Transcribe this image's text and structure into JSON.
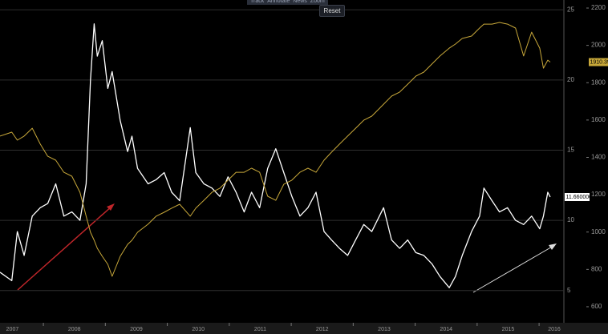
{
  "toolbar": {
    "items": [
      "Track",
      "Annotate",
      "News",
      "Zoom"
    ],
    "reset": "Reset"
  },
  "chart_data": {
    "type": "line",
    "x": [
      2007.3,
      2007.49,
      2007.58,
      2007.69,
      2007.82,
      2007.95,
      2008.07,
      2008.2,
      2008.33,
      2008.46,
      2008.59,
      2008.69,
      2008.76,
      2008.82,
      2008.87,
      2008.95,
      2009.04,
      2009.11,
      2009.24,
      2009.36,
      2009.43,
      2009.52,
      2009.69,
      2009.82,
      2009.95,
      2010.07,
      2010.2,
      2010.37,
      2010.46,
      2010.59,
      2010.72,
      2010.85,
      2010.98,
      2011.11,
      2011.24,
      2011.36,
      2011.49,
      2011.62,
      2011.75,
      2011.88,
      2012.01,
      2012.14,
      2012.27,
      2012.4,
      2012.53,
      2012.65,
      2012.78,
      2012.91,
      2013.04,
      2013.17,
      2013.3,
      2013.49,
      2013.62,
      2013.75,
      2013.88,
      2014.01,
      2014.14,
      2014.27,
      2014.4,
      2014.55,
      2014.65,
      2014.76,
      2014.91,
      2015.04,
      2015.11,
      2015.24,
      2015.36,
      2015.49,
      2015.62,
      2015.75,
      2015.88,
      2016.01,
      2016.07,
      2016.14,
      2016.18
    ],
    "series": [
      {
        "color": "#ffffff",
        "axis": "y",
        "last_value_label": "11.660000",
        "values": [
          6.3,
          5.7,
          9.2,
          7.5,
          10.3,
          10.9,
          11.2,
          12.6,
          10.3,
          10.6,
          10.0,
          12.6,
          20,
          24,
          21.7,
          22.8,
          19.4,
          20.6,
          17.1,
          14.9,
          16,
          13.7,
          12.6,
          12.9,
          13.4,
          12,
          11.4,
          16.6,
          13.4,
          12.6,
          12.3,
          11.7,
          13.1,
          12,
          10.6,
          12,
          10.9,
          13.7,
          15.1,
          13.4,
          11.7,
          10.3,
          10.9,
          12,
          9.2,
          8.6,
          8.0,
          7.5,
          8.6,
          9.7,
          9.2,
          10.9,
          8.6,
          8.0,
          8.6,
          7.7,
          7.5,
          6.9,
          6.0,
          5.2,
          6.0,
          7.5,
          9.2,
          10.3,
          12.3,
          11.4,
          10.6,
          10.9,
          10.0,
          9.7,
          10.3,
          9.4,
          10.3,
          12,
          11.66
        ]
      },
      {
        "color": "#c8a83a",
        "axis": "y2",
        "last_value_label": "1910.39",
        "values": [
          1514,
          1535,
          1492,
          1514,
          1556,
          1471,
          1406,
          1385,
          1320,
          1299,
          1213,
          1085,
          999,
          956,
          913,
          870,
          827,
          763,
          870,
          934,
          956,
          999,
          1042,
          1085,
          1106,
          1128,
          1149,
          1085,
          1128,
          1170,
          1213,
          1235,
          1278,
          1320,
          1320,
          1342,
          1320,
          1192,
          1170,
          1256,
          1278,
          1320,
          1342,
          1320,
          1385,
          1428,
          1471,
          1514,
          1556,
          1599,
          1621,
          1685,
          1728,
          1750,
          1792,
          1835,
          1857,
          1900,
          1943,
          1985,
          2007,
          2037,
          2050,
          2093,
          2114,
          2114,
          2123,
          2114,
          2093,
          1943,
          2071,
          1985,
          1878,
          1921,
          1910.39
        ]
      }
    ],
    "xlim": [
      2007.3,
      2016.4
    ],
    "xticks": [
      2007,
      2008,
      2009,
      2010,
      2011,
      2012,
      2013,
      2014,
      2015,
      2016
    ],
    "ylim": [
      2.7,
      25.7
    ],
    "yticks": [
      5,
      10,
      15,
      20,
      25
    ],
    "y2lim": [
      514,
      2243
    ],
    "y2ticks": [
      600,
      800,
      1000,
      1200,
      1400,
      1600,
      1800,
      2000,
      2200
    ],
    "grid": true
  }
}
